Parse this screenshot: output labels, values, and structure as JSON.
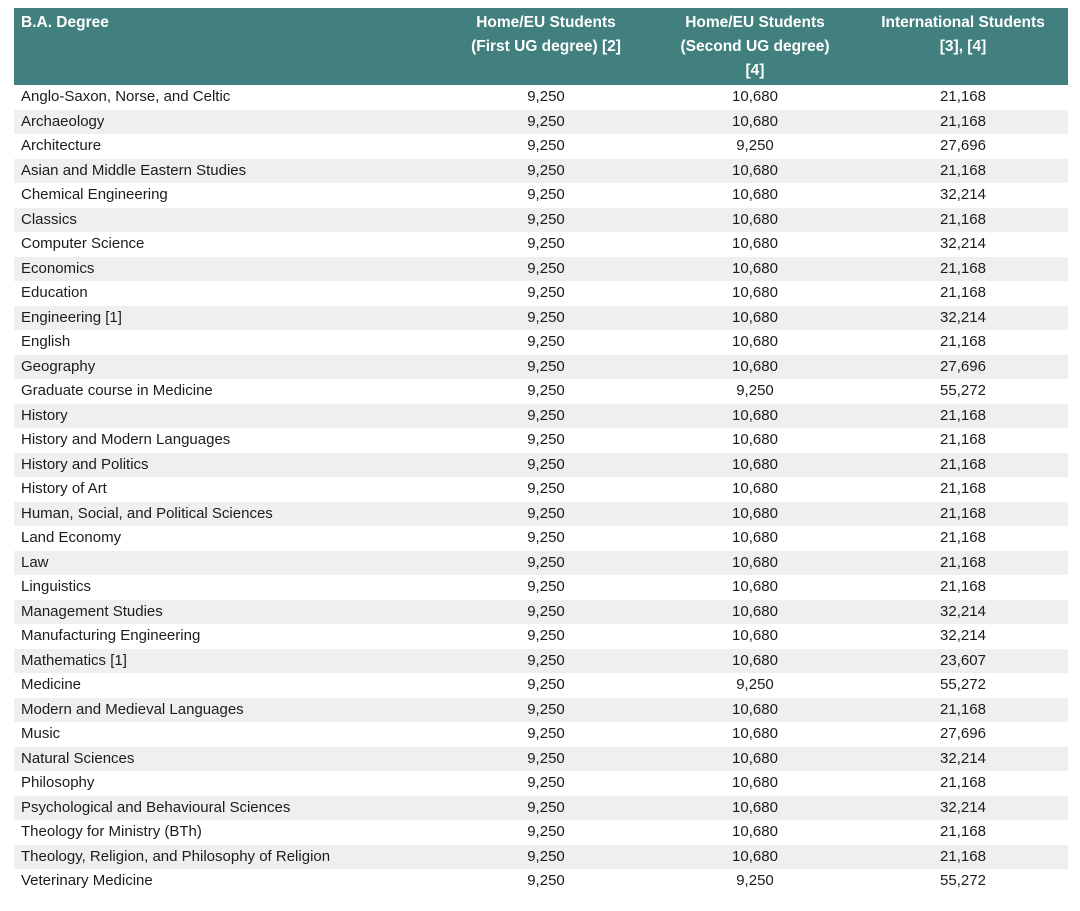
{
  "colors": {
    "header_bg": "#41807F",
    "header_text": "#FFFFFF",
    "row_bg": "#FFFFFF",
    "row_alt_bg": "#EFEFEF",
    "body_text": "#1C1C1C"
  },
  "table": {
    "columns": [
      {
        "label": "B.A. Degree",
        "align": "left"
      },
      {
        "label": "Home/EU Students\n(First UG degree) [2]",
        "align": "center"
      },
      {
        "label": "Home/EU Students\n(Second UG degree)\n[4]",
        "align": "center"
      },
      {
        "label": "International Students\n[3], [4]",
        "align": "center"
      }
    ],
    "rows": [
      {
        "degree": "Anglo-Saxon, Norse, and Celtic",
        "home_eu_first": "9,250",
        "home_eu_second": "10,680",
        "international": "21,168"
      },
      {
        "degree": "Archaeology",
        "home_eu_first": "9,250",
        "home_eu_second": "10,680",
        "international": "21,168"
      },
      {
        "degree": "Architecture",
        "home_eu_first": "9,250",
        "home_eu_second": "9,250",
        "international": "27,696"
      },
      {
        "degree": "Asian and Middle Eastern Studies",
        "home_eu_first": "9,250",
        "home_eu_second": "10,680",
        "international": "21,168"
      },
      {
        "degree": "Chemical Engineering",
        "home_eu_first": "9,250",
        "home_eu_second": "10,680",
        "international": "32,214"
      },
      {
        "degree": "Classics",
        "home_eu_first": "9,250",
        "home_eu_second": "10,680",
        "international": "21,168"
      },
      {
        "degree": "Computer Science",
        "home_eu_first": "9,250",
        "home_eu_second": "10,680",
        "international": "32,214"
      },
      {
        "degree": "Economics",
        "home_eu_first": "9,250",
        "home_eu_second": "10,680",
        "international": "21,168"
      },
      {
        "degree": "Education",
        "home_eu_first": "9,250",
        "home_eu_second": "10,680",
        "international": "21,168"
      },
      {
        "degree": "Engineering [1]",
        "home_eu_first": "9,250",
        "home_eu_second": "10,680",
        "international": "32,214"
      },
      {
        "degree": "English",
        "home_eu_first": "9,250",
        "home_eu_second": "10,680",
        "international": "21,168"
      },
      {
        "degree": "Geography",
        "home_eu_first": "9,250",
        "home_eu_second": "10,680",
        "international": "27,696"
      },
      {
        "degree": "Graduate course in Medicine",
        "home_eu_first": "9,250",
        "home_eu_second": "9,250",
        "international": "55,272"
      },
      {
        "degree": "History",
        "home_eu_first": "9,250",
        "home_eu_second": "10,680",
        "international": "21,168"
      },
      {
        "degree": "History and Modern Languages",
        "home_eu_first": "9,250",
        "home_eu_second": "10,680",
        "international": "21,168"
      },
      {
        "degree": "History and Politics",
        "home_eu_first": "9,250",
        "home_eu_second": "10,680",
        "international": "21,168"
      },
      {
        "degree": "History of Art",
        "home_eu_first": "9,250",
        "home_eu_second": "10,680",
        "international": "21,168"
      },
      {
        "degree": "Human, Social, and Political Sciences",
        "home_eu_first": "9,250",
        "home_eu_second": "10,680",
        "international": "21,168"
      },
      {
        "degree": "Land Economy",
        "home_eu_first": "9,250",
        "home_eu_second": "10,680",
        "international": "21,168"
      },
      {
        "degree": "Law",
        "home_eu_first": "9,250",
        "home_eu_second": "10,680",
        "international": "21,168"
      },
      {
        "degree": "Linguistics",
        "home_eu_first": "9,250",
        "home_eu_second": "10,680",
        "international": "21,168"
      },
      {
        "degree": "Management Studies",
        "home_eu_first": "9,250",
        "home_eu_second": "10,680",
        "international": "32,214"
      },
      {
        "degree": "Manufacturing Engineering",
        "home_eu_first": "9,250",
        "home_eu_second": "10,680",
        "international": "32,214"
      },
      {
        "degree": "Mathematics [1]",
        "home_eu_first": "9,250",
        "home_eu_second": "10,680",
        "international": "23,607"
      },
      {
        "degree": "Medicine",
        "home_eu_first": "9,250",
        "home_eu_second": "9,250",
        "international": "55,272"
      },
      {
        "degree": "Modern and Medieval Languages",
        "home_eu_first": "9,250",
        "home_eu_second": "10,680",
        "international": "21,168"
      },
      {
        "degree": "Music",
        "home_eu_first": "9,250",
        "home_eu_second": "10,680",
        "international": "27,696"
      },
      {
        "degree": "Natural Sciences",
        "home_eu_first": "9,250",
        "home_eu_second": "10,680",
        "international": "32,214"
      },
      {
        "degree": "Philosophy",
        "home_eu_first": "9,250",
        "home_eu_second": "10,680",
        "international": "21,168"
      },
      {
        "degree": "Psychological and Behavioural Sciences",
        "home_eu_first": "9,250",
        "home_eu_second": "10,680",
        "international": "32,214"
      },
      {
        "degree": "Theology for Ministry (BTh)",
        "home_eu_first": "9,250",
        "home_eu_second": "10,680",
        "international": "21,168"
      },
      {
        "degree": "Theology, Religion, and Philosophy of Religion",
        "home_eu_first": "9,250",
        "home_eu_second": "10,680",
        "international": "21,168"
      },
      {
        "degree": "Veterinary Medicine",
        "home_eu_first": "9,250",
        "home_eu_second": "9,250",
        "international": "55,272"
      }
    ]
  }
}
